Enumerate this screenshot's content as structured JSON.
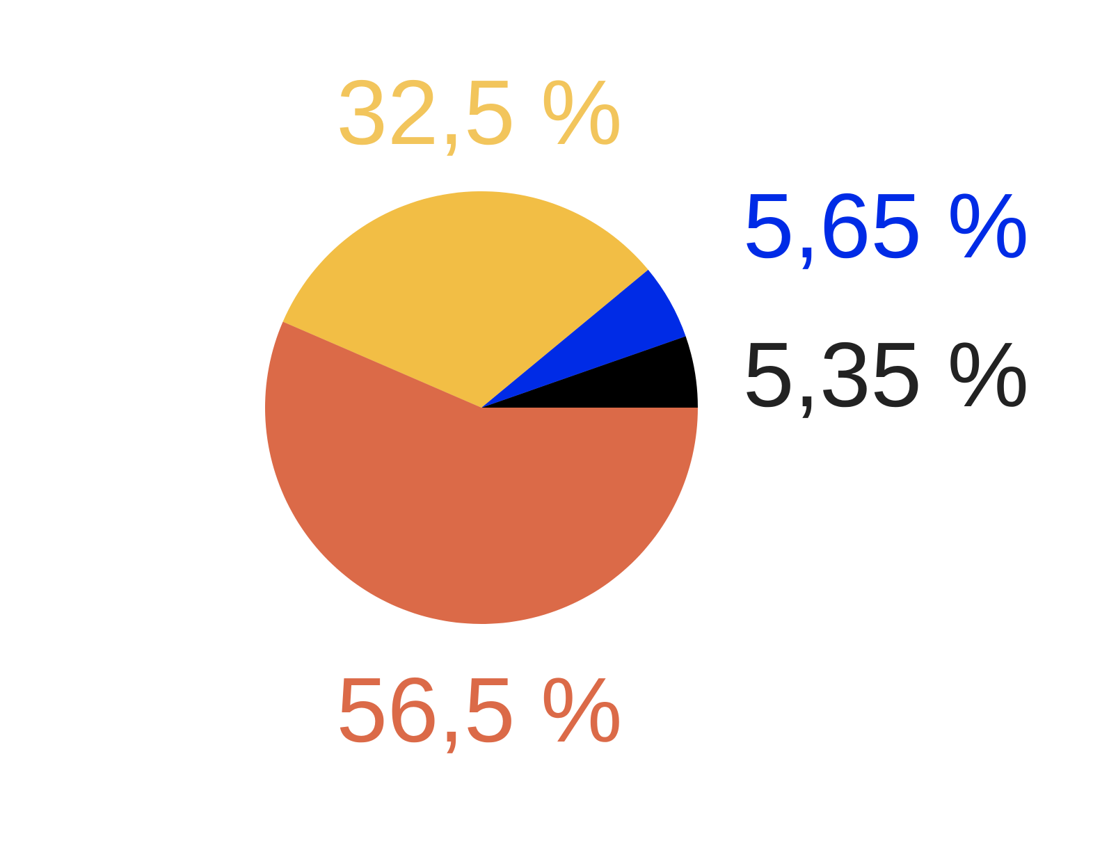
{
  "chart_data": {
    "type": "pie",
    "slices": [
      {
        "value": 5.35,
        "label": "5,35 %",
        "color": "#000000",
        "label_color": "#222222"
      },
      {
        "value": 5.65,
        "label": "5,65 %",
        "color": "#002BE6",
        "label_color": "#002BE6"
      },
      {
        "value": 32.5,
        "label": "32,5 %",
        "color": "#F2BE45",
        "label_color": "#F2C55C"
      },
      {
        "value": 56.5,
        "label": "56,5 %",
        "color": "#DB6A48",
        "label_color": "#DB6A48"
      }
    ],
    "start_angle_deg": 0,
    "direction": "counterclockwise",
    "legend": "none"
  }
}
